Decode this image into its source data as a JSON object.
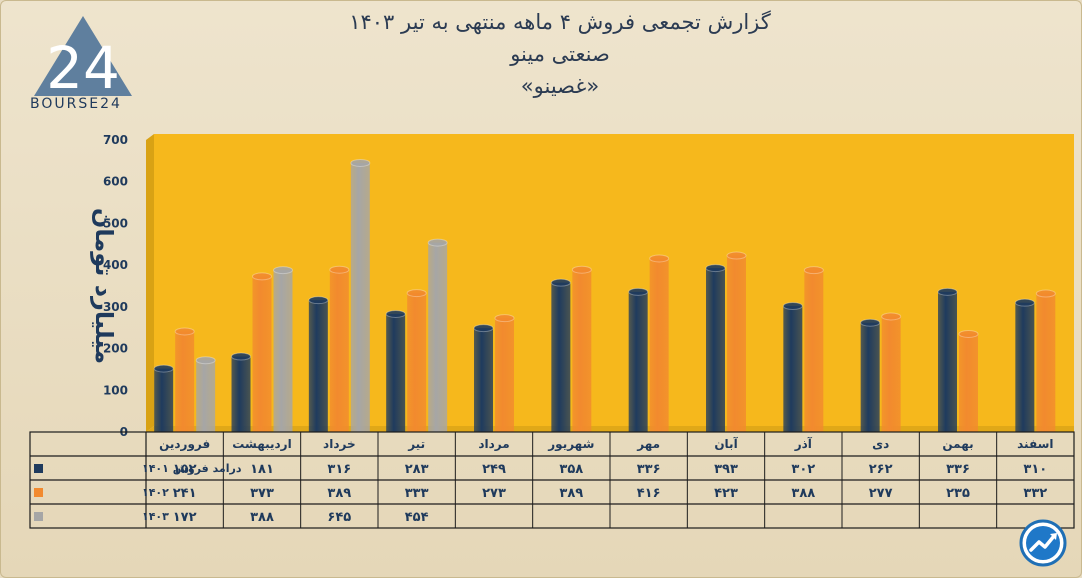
{
  "header": {
    "title_line1": "گزارش تجمعی فروش ۴ ماهه منتهی به تیر ۱۴۰۳",
    "title_line2": "صنعتی مینو",
    "title_line3": "«غصینو»",
    "logo_text": "BOURSE24",
    "logo_number": "24"
  },
  "colors": {
    "series_1401": "#1f3b5e",
    "series_1402": "#f28a2e",
    "series_1403": "#a6a6a6",
    "plot_background": "#f6b81c",
    "page_background": "#e8dcc2",
    "text": "#1f3a5c"
  },
  "chart_data": {
    "type": "bar",
    "ylabel": "میلیارد تومان",
    "ylim": [
      0,
      700
    ],
    "yticks": [
      "0",
      "100",
      "200",
      "300",
      "400",
      "500",
      "600",
      "700"
    ],
    "categories": [
      "فروردین",
      "اردیبهشت",
      "خرداد",
      "تیر",
      "مرداد",
      "شهریور",
      "مهر",
      "آبان",
      "آذر",
      "دی",
      "بهمن",
      "اسفند"
    ],
    "series": [
      {
        "name": "درامد فروش ۱۴۰۱",
        "values": [
          152,
          181,
          316,
          283,
          249,
          358,
          336,
          393,
          302,
          262,
          336,
          310
        ],
        "labels": [
          "۱۵۲",
          "۱۸۱",
          "۳۱۶",
          "۲۸۳",
          "۲۴۹",
          "۳۵۸",
          "۳۳۶",
          "۳۹۳",
          "۳۰۲",
          "۲۶۲",
          "۳۳۶",
          "۳۱۰"
        ]
      },
      {
        "name": "۱۴۰۲",
        "values": [
          241,
          373,
          389,
          333,
          273,
          389,
          416,
          423,
          388,
          277,
          235,
          332
        ],
        "labels": [
          "۲۴۱",
          "۳۷۳",
          "۳۸۹",
          "۳۳۳",
          "۲۷۳",
          "۳۸۹",
          "۴۱۶",
          "۴۲۳",
          "۳۸۸",
          "۲۷۷",
          "۲۳۵",
          "۳۳۲"
        ]
      },
      {
        "name": "۱۴۰۳",
        "values": [
          172,
          388,
          645,
          454,
          null,
          null,
          null,
          null,
          null,
          null,
          null,
          null
        ],
        "labels": [
          "۱۷۲",
          "۳۸۸",
          "۶۴۵",
          "۴۵۴",
          "",
          "",
          "",
          "",
          "",
          "",
          "",
          ""
        ]
      }
    ],
    "grid": false,
    "legend": "table-left"
  }
}
